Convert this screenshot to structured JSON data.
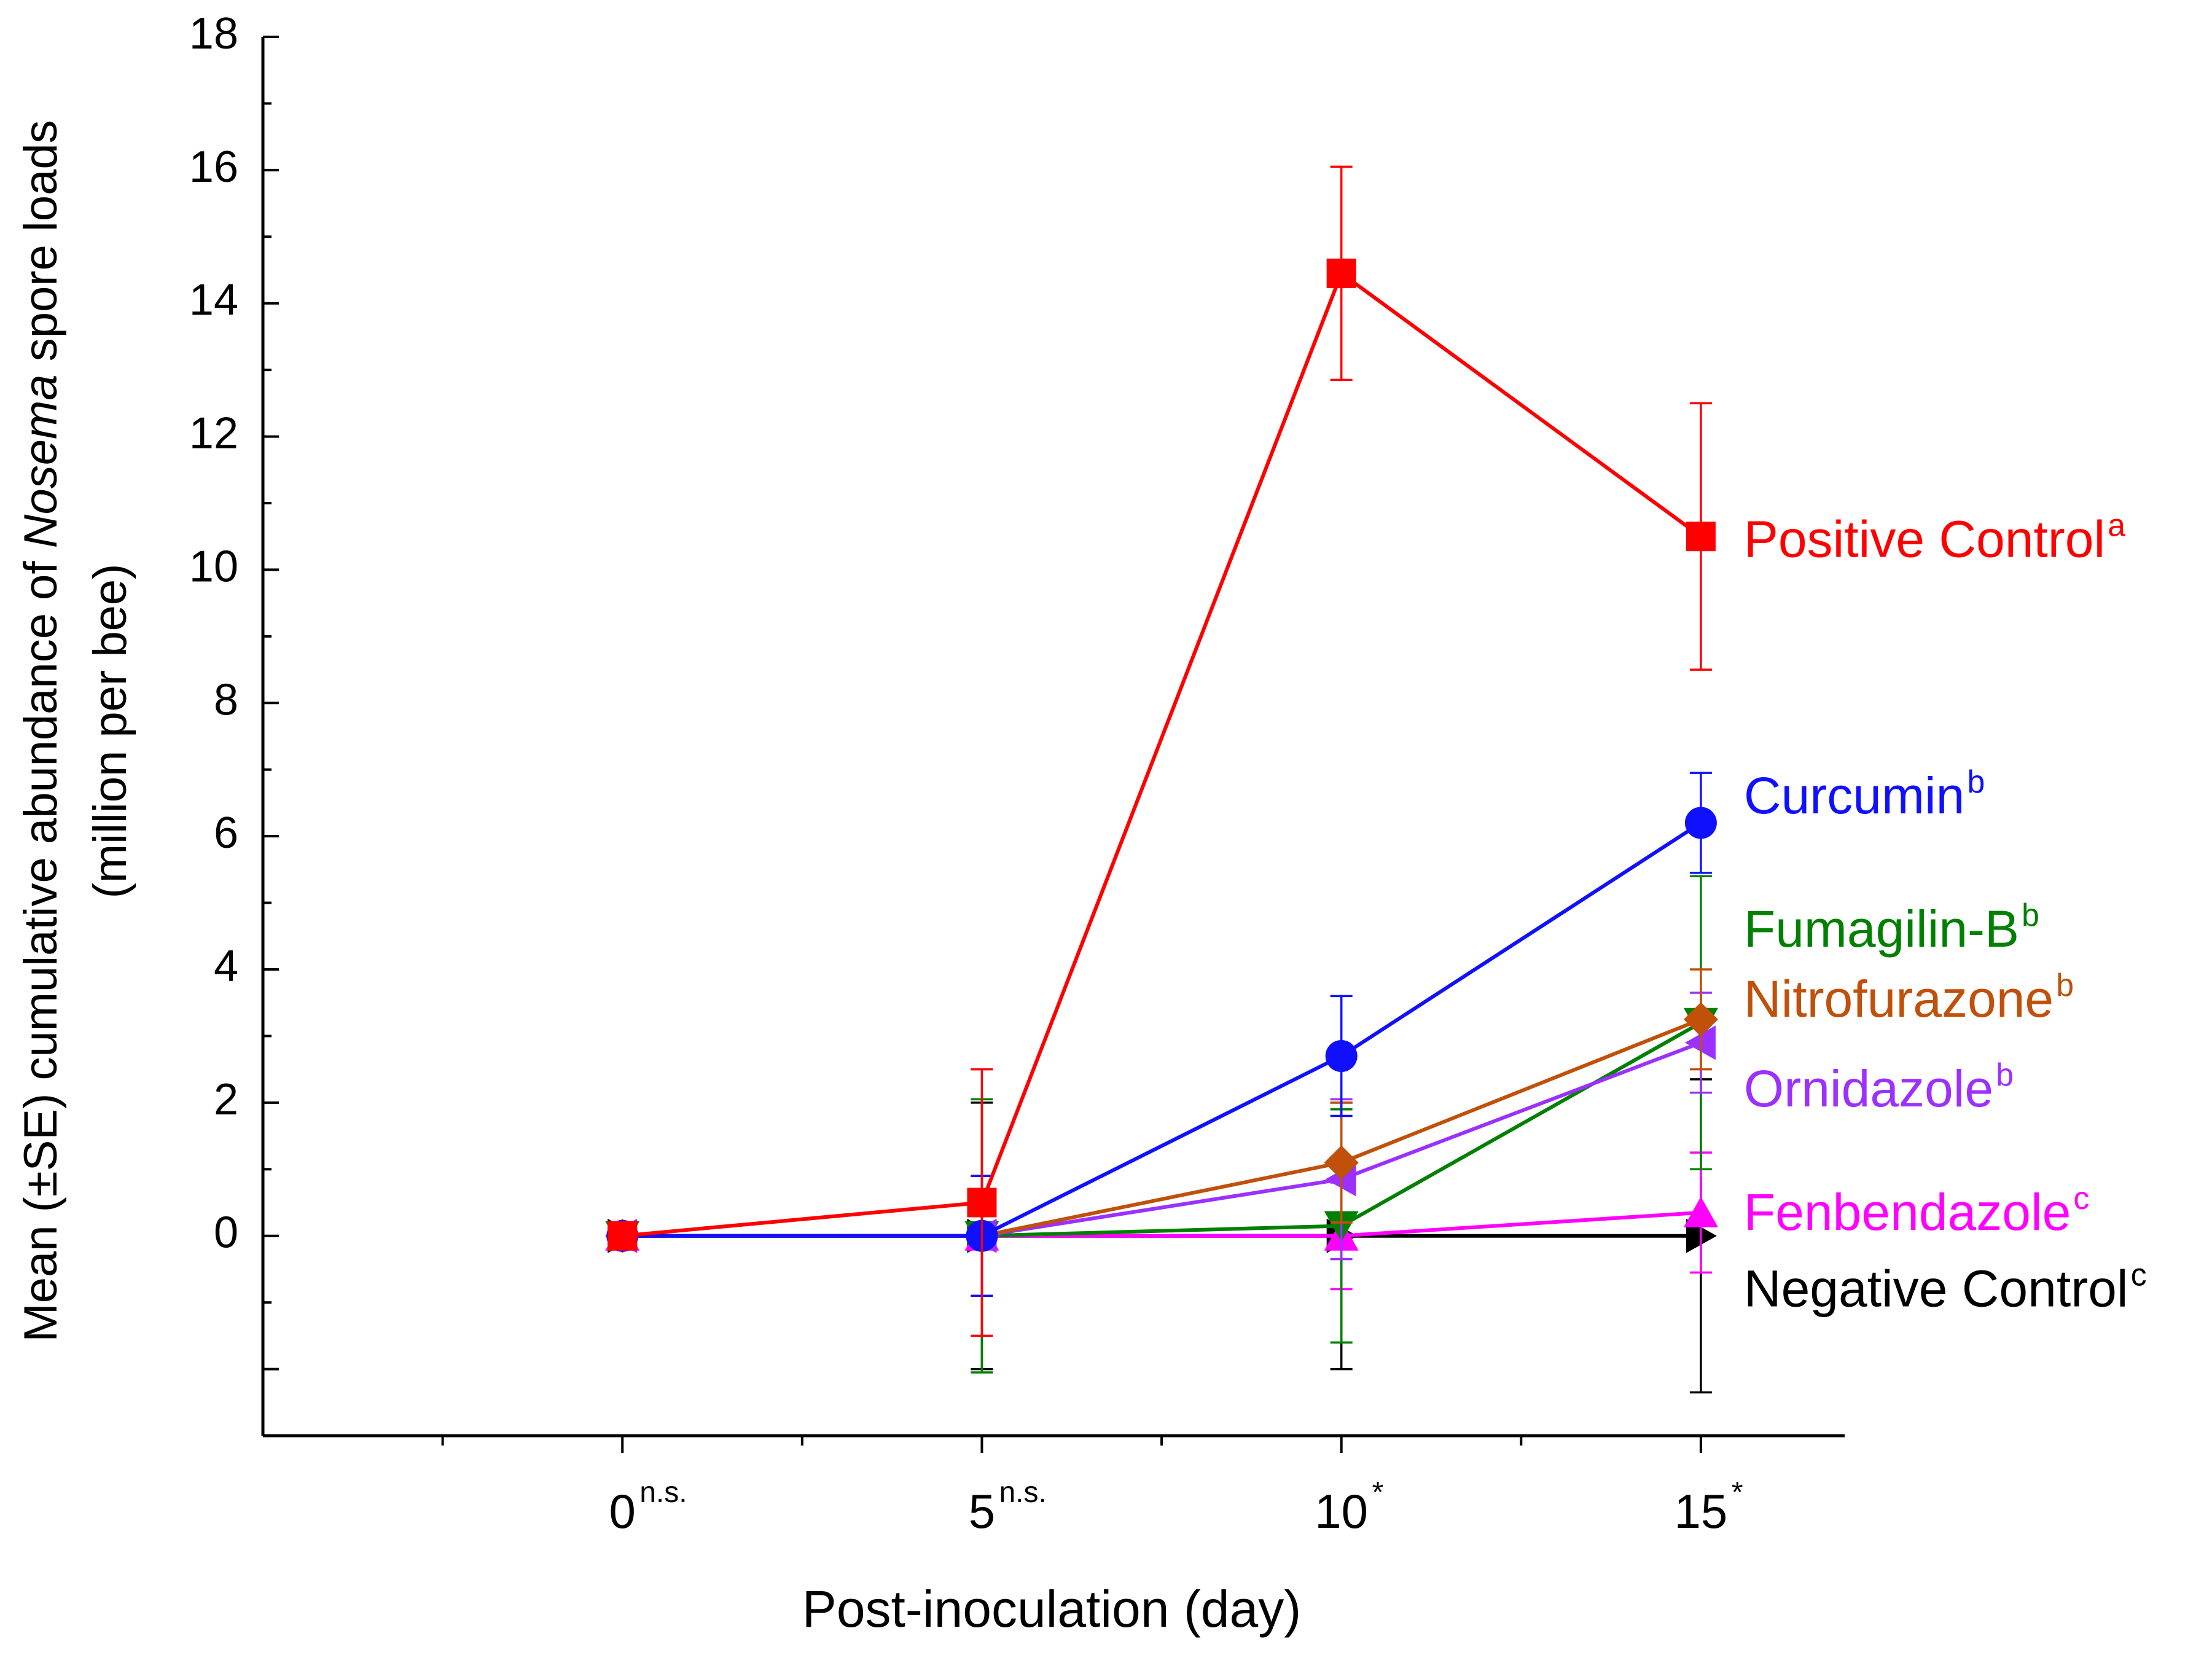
{
  "chart_data": {
    "type": "line",
    "title": "",
    "xlabel": "Post-inoculation (day)",
    "ylabel": {
      "line1_prefix": "Mean (±SE) cumulative abundance of ",
      "line1_italic": "Nosema",
      "line1_suffix": " spore loads",
      "line2": "(million per bee)"
    },
    "xlim": [
      -5,
      17
    ],
    "ylim": [
      -3,
      18
    ],
    "y_ticks_labeled": [
      0,
      2,
      4,
      6,
      8,
      10,
      12,
      14,
      16,
      18
    ],
    "y_major_ticks": [
      -2,
      0,
      2,
      4,
      6,
      8,
      10,
      12,
      14,
      16,
      18
    ],
    "y_minor_ticks": [
      -3,
      -1,
      1,
      3,
      5,
      7,
      9,
      11,
      13,
      15,
      17
    ],
    "x_ticks": [
      {
        "value": 0,
        "label": "0",
        "sup": "n.s."
      },
      {
        "value": 5,
        "label": "5",
        "sup": "n.s."
      },
      {
        "value": 10,
        "label": "10",
        "sup": "*"
      },
      {
        "value": 15,
        "label": "15",
        "sup": "*"
      }
    ],
    "x_minor_ticks": [
      -2.5,
      2.5,
      7.5,
      12.5
    ],
    "x": [
      0,
      5,
      10,
      15
    ],
    "series": [
      {
        "name": "Negative Control",
        "sup": "c",
        "color": "#000000",
        "marker": "triangle-right",
        "values": [
          0,
          0,
          0,
          0
        ],
        "errors": [
          0,
          2.0,
          2.0,
          2.35
        ],
        "legend_value": -0.8
      },
      {
        "name": "Fenbendazole",
        "sup": "c",
        "color": "#ff00ff",
        "marker": "triangle-up",
        "values": [
          0,
          0,
          0,
          0.35
        ],
        "errors": [
          0,
          0.9,
          0.8,
          0.9
        ],
        "legend_value": 0.35
      },
      {
        "name": "Fumagilin-B",
        "sup": "b",
        "color": "#008000",
        "marker": "triangle-down",
        "values": [
          0,
          0,
          0.15,
          3.2
        ],
        "errors": [
          0,
          2.05,
          1.75,
          2.2
        ],
        "legend_value": 4.6
      },
      {
        "name": "Ornidazole",
        "sup": "b",
        "color": "#9b30ff",
        "marker": "triangle-left",
        "values": [
          0,
          0,
          0.85,
          2.9
        ],
        "errors": [
          0,
          0.9,
          1.2,
          0.75
        ],
        "legend_value": 2.2
      },
      {
        "name": "Nitrofurazone",
        "sup": "b",
        "color": "#c0500a",
        "marker": "diamond",
        "values": [
          0,
          0,
          1.1,
          3.25
        ],
        "errors": [
          0,
          0.9,
          0.9,
          0.75
        ],
        "legend_value": 3.55
      },
      {
        "name": "Curcumin",
        "sup": "b",
        "color": "#1010ff",
        "marker": "circle",
        "values": [
          0,
          0,
          2.7,
          6.2
        ],
        "errors": [
          0,
          0.9,
          0.9,
          0.75
        ],
        "legend_value": 6.6
      },
      {
        "name": "Positive Control",
        "sup": "a",
        "color": "#ff0000",
        "marker": "square",
        "values": [
          0,
          0.5,
          14.45,
          10.5
        ],
        "errors": [
          0,
          2.0,
          1.6,
          2.0
        ],
        "legend_value": 10.45
      }
    ]
  }
}
